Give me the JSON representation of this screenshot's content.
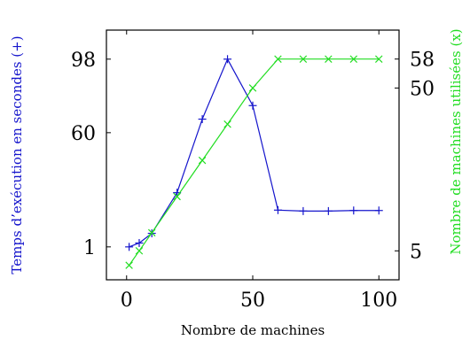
{
  "chart_data": {
    "type": "line",
    "xlabel": "Nombre de machines",
    "x_ticks": [
      0,
      50,
      100
    ],
    "xlim": [
      -8,
      108
    ],
    "left_axis": {
      "label": "Temps d’exécution en secondes (+)",
      "ticks": [
        1,
        60,
        98
      ],
      "ylim": [
        -16,
        113
      ],
      "color": "#1515cc"
    },
    "right_axis": {
      "label": "Nombre de machines utilisées (x)",
      "ticks": [
        5,
        50,
        58
      ],
      "ylim": [
        -3,
        66
      ],
      "color": "#22dd22"
    },
    "series": [
      {
        "name": "Temps d’exécution en secondes (+)",
        "axis": "left",
        "marker": "+",
        "color": "#1515cc",
        "x": [
          1,
          5,
          10,
          20,
          30,
          40,
          50,
          60,
          70,
          80,
          90,
          100
        ],
        "y": [
          1,
          3,
          8,
          29,
          67,
          98,
          74,
          20,
          19.5,
          19.5,
          19.8,
          19.8
        ]
      },
      {
        "name": "Nombre de machines utilisées (x)",
        "axis": "right",
        "marker": "x",
        "color": "#22dd22",
        "x": [
          1,
          5,
          10,
          20,
          30,
          40,
          50,
          60,
          70,
          80,
          90,
          100
        ],
        "y": [
          1,
          5,
          10,
          20,
          30,
          40,
          50,
          58,
          58,
          58,
          58,
          58
        ]
      }
    ],
    "grid": false,
    "legend": "none"
  }
}
